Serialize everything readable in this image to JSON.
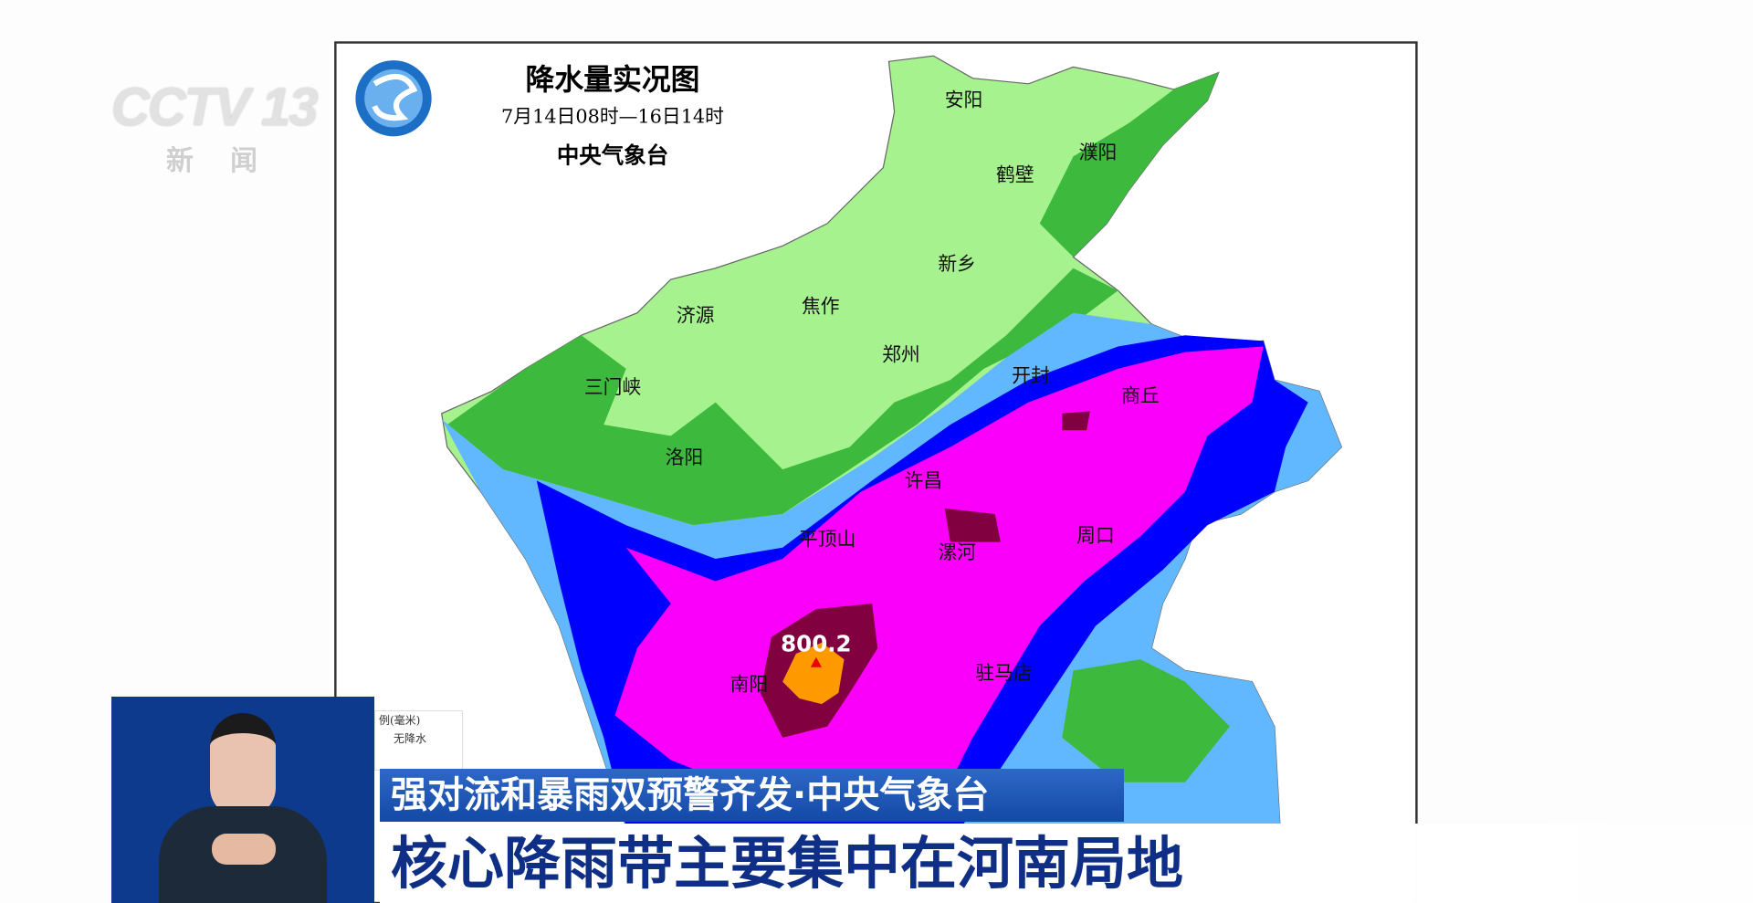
{
  "channel": {
    "logo": "CCTV 13",
    "sub": "新闻"
  },
  "map": {
    "title": "降水量实况图",
    "period": "7月14日08时—16日14时",
    "source": "中央气象台",
    "max_value_label": "800.2",
    "cities": [
      "安阳",
      "濮阳",
      "鹤壁",
      "新乡",
      "济源",
      "焦作",
      "郑州",
      "开封",
      "商丘",
      "三门峡",
      "洛阳",
      "许昌",
      "平顶山",
      "漯河",
      "周口",
      "南阳",
      "驻马店"
    ],
    "legend": {
      "title": "例(毫米)",
      "first_item": "无降水"
    },
    "colors": {
      "light_green": "#a6f28f",
      "green": "#3dba3d",
      "light_blue": "#61b8ff",
      "blue": "#0000fe",
      "magenta": "#fa00fa",
      "dark_red": "#800040",
      "orange": "#ff9900"
    }
  },
  "banner": {
    "headline_top": "强对流和暴雨双预警齐发·中央气象台",
    "headline_main": "核心降雨带主要集中在河南局地"
  }
}
